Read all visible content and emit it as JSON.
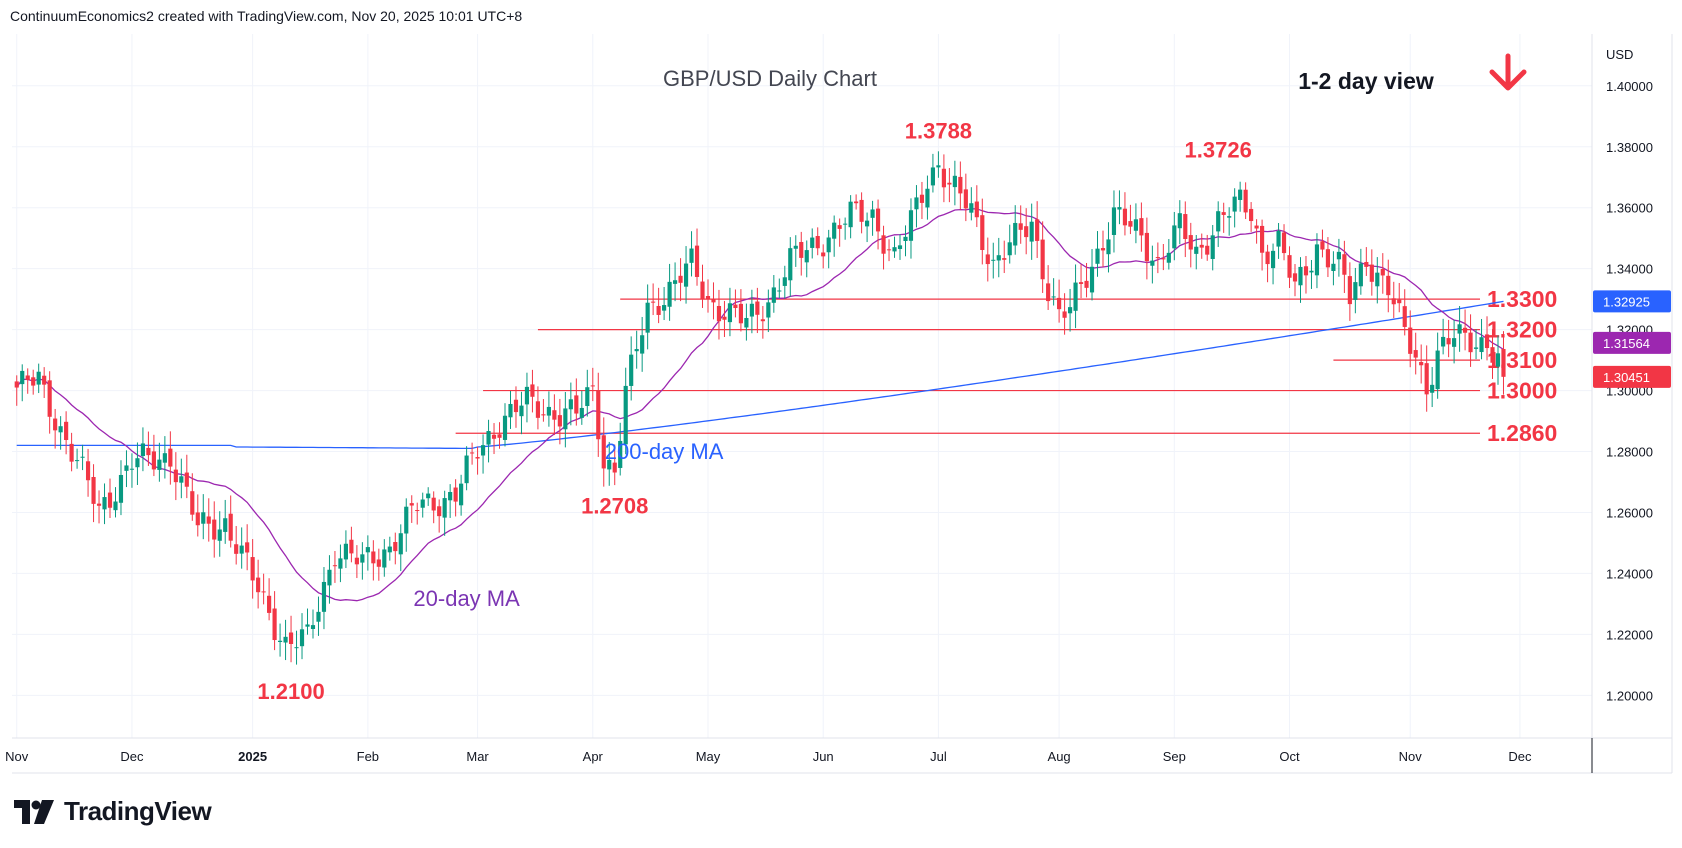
{
  "header": {
    "attribution": "ContinuumEconomics2 created with TradingView.com, Nov 20, 2025 10:01 UTC+8"
  },
  "footer": {
    "brand": "TradingView",
    "logo_icon": "tradingview-logo-icon"
  },
  "chart_data": {
    "type": "candlestick",
    "title": "GBP/USD Daily Chart",
    "subtitle": "1-2 day view",
    "direction_arrow": {
      "icon": "down-arrow-icon",
      "color": "#f23645"
    },
    "currency_label": "USD",
    "ylim": [
      1.186,
      1.417
    ],
    "y_ticks": [
      "1.40000",
      "1.38000",
      "1.36000",
      "1.34000",
      "1.32000",
      "1.30000",
      "1.28000",
      "1.26000",
      "1.24000",
      "1.22000",
      "1.20000"
    ],
    "x_ticks": [
      {
        "label": "Nov",
        "bar": 0
      },
      {
        "label": "Dec",
        "bar": 21
      },
      {
        "label": "2025",
        "bar": 43
      },
      {
        "label": "Feb",
        "bar": 64
      },
      {
        "label": "Mar",
        "bar": 84
      },
      {
        "label": "Apr",
        "bar": 105
      },
      {
        "label": "May",
        "bar": 126
      },
      {
        "label": "Jun",
        "bar": 147
      },
      {
        "label": "Jul",
        "bar": 168
      },
      {
        "label": "Aug",
        "bar": 190
      },
      {
        "label": "Sep",
        "bar": 211
      },
      {
        "label": "Oct",
        "bar": 232
      },
      {
        "label": "Nov",
        "bar": 254
      },
      {
        "label": "Dec",
        "bar": 274
      }
    ],
    "total_bars": 288,
    "anchors": [
      [
        0,
        1.301
      ],
      [
        4,
        1.303
      ],
      [
        10,
        1.28
      ],
      [
        15,
        1.261
      ],
      [
        21,
        1.276
      ],
      [
        28,
        1.279
      ],
      [
        33,
        1.255
      ],
      [
        38,
        1.257
      ],
      [
        43,
        1.238
      ],
      [
        49,
        1.217
      ],
      [
        53,
        1.218
      ],
      [
        58,
        1.248
      ],
      [
        63,
        1.243
      ],
      [
        68,
        1.249
      ],
      [
        73,
        1.262
      ],
      [
        80,
        1.266
      ],
      [
        84,
        1.28
      ],
      [
        88,
        1.29
      ],
      [
        93,
        1.296
      ],
      [
        98,
        1.293
      ],
      [
        102,
        1.292
      ],
      [
        105,
        1.3
      ],
      [
        107,
        1.278
      ],
      [
        109,
        1.274
      ],
      [
        111,
        1.299
      ],
      [
        115,
        1.327
      ],
      [
        120,
        1.335
      ],
      [
        123,
        1.341
      ],
      [
        126,
        1.33
      ],
      [
        130,
        1.325
      ],
      [
        133,
        1.322
      ],
      [
        137,
        1.33
      ],
      [
        141,
        1.342
      ],
      [
        147,
        1.35
      ],
      [
        152,
        1.357
      ],
      [
        156,
        1.358
      ],
      [
        160,
        1.343
      ],
      [
        163,
        1.355
      ],
      [
        166,
        1.37
      ],
      [
        168,
        1.375
      ],
      [
        170,
        1.367
      ],
      [
        174,
        1.359
      ],
      [
        178,
        1.342
      ],
      [
        182,
        1.349
      ],
      [
        185,
        1.355
      ],
      [
        188,
        1.334
      ],
      [
        190,
        1.324
      ],
      [
        192,
        1.326
      ],
      [
        196,
        1.342
      ],
      [
        200,
        1.357
      ],
      [
        205,
        1.351
      ],
      [
        208,
        1.342
      ],
      [
        212,
        1.353
      ],
      [
        215,
        1.345
      ],
      [
        219,
        1.356
      ],
      [
        223,
        1.361
      ],
      [
        225,
        1.359
      ],
      [
        227,
        1.346
      ],
      [
        230,
        1.348
      ],
      [
        233,
        1.333
      ],
      [
        237,
        1.348
      ],
      [
        241,
        1.34
      ],
      [
        243,
        1.33
      ],
      [
        246,
        1.344
      ],
      [
        250,
        1.333
      ],
      [
        253,
        1.318
      ],
      [
        255,
        1.312
      ],
      [
        257,
        1.302
      ],
      [
        259,
        1.312
      ],
      [
        262,
        1.317
      ],
      [
        266,
        1.317
      ],
      [
        268,
        1.316
      ],
      [
        270,
        1.31
      ],
      [
        271,
        1.304
      ]
    ],
    "last_close": 1.30451,
    "price_labels": [
      {
        "text": "1.32925",
        "value": 1.32925,
        "color": "#2962ff"
      },
      {
        "text": "1.31564",
        "value": 1.31564,
        "color": "#9c27b0"
      },
      {
        "text": "1.30451",
        "value": 1.30451,
        "color": "#f23645"
      }
    ],
    "levels": [
      {
        "label": "1.3300",
        "value": 1.33,
        "from_bar": 110
      },
      {
        "label": "1.3200",
        "value": 1.32,
        "from_bar": 95
      },
      {
        "label": "1.3100",
        "value": 1.31,
        "from_bar": 240
      },
      {
        "label": "1.3000",
        "value": 1.3,
        "from_bar": 85
      },
      {
        "label": "1.2860",
        "value": 1.286,
        "from_bar": 80
      }
    ],
    "annotations": [
      {
        "text": "1.3788",
        "color": "#f23645",
        "bar": 168,
        "value": 1.3788
      },
      {
        "text": "1.3726",
        "color": "#f23645",
        "bar": 219,
        "value": 1.3726
      },
      {
        "text": "1.2708",
        "color": "#f23645",
        "bar": 109,
        "value": 1.2708
      },
      {
        "text": "1.2100",
        "color": "#f23645",
        "bar": 50,
        "value": 1.21
      },
      {
        "text": "200-day MA",
        "color": "#2962ff",
        "bar": 118,
        "value": 1.2775
      },
      {
        "text": "20-day MA",
        "color": "#7b35b3",
        "bar": 82,
        "value": 1.2405
      }
    ],
    "series": [
      {
        "name": "20-day MA",
        "color": "#9c27b0"
      },
      {
        "name": "200-day MA",
        "color": "#2962ff"
      }
    ],
    "colors": {
      "up": "#089981",
      "down": "#f23645",
      "level": "#f23645",
      "grid": "#f0f3fa"
    }
  }
}
